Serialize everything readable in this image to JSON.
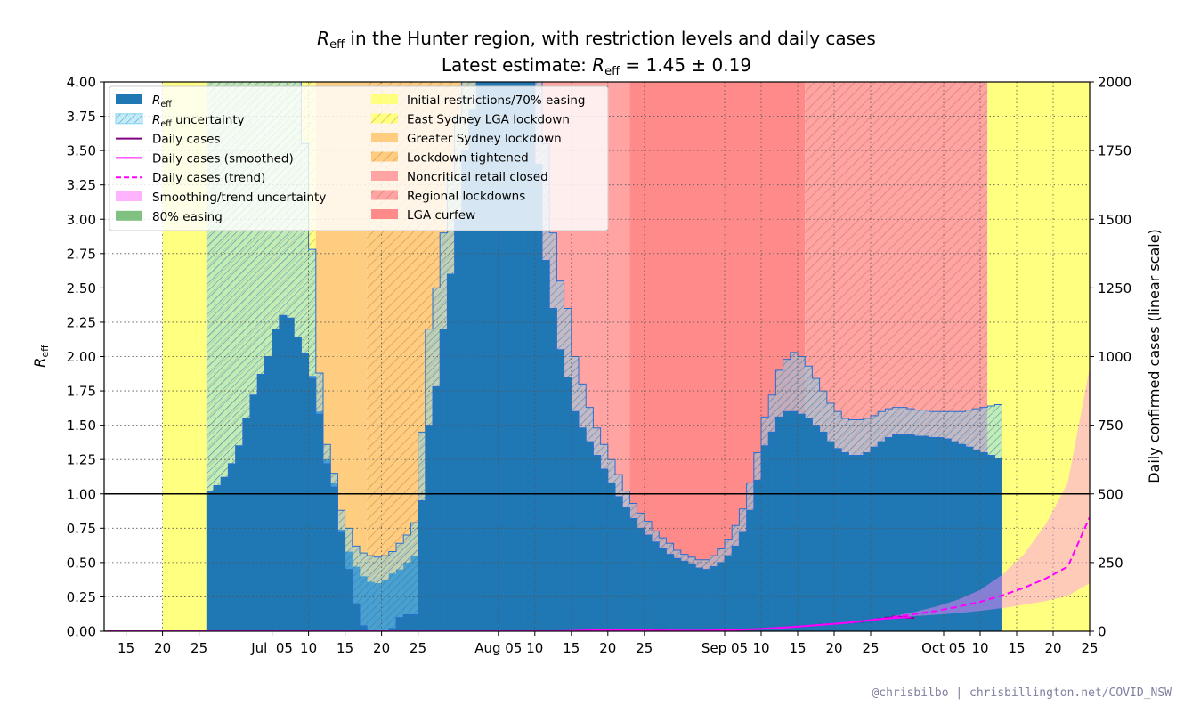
{
  "chart_data": {
    "type": "step-area",
    "title_symbol": "R",
    "title_subscript": "eff",
    "title_rest": " in the Hunter region, with restriction levels and daily cases",
    "subtitle_prefix": "Latest estimate: ",
    "subtitle_symbol": "R",
    "subtitle_subscript": "eff",
    "subtitle_value": " = 1.45 ± 0.19",
    "ylabel_left_symbol": "R",
    "ylabel_left_subscript": "eff",
    "ylabel_right": "Daily confirmed cases (linear scale)",
    "x_range": [
      "2021-06-12",
      "2021-10-25"
    ],
    "ylim_left": [
      0,
      4
    ],
    "ylim_right": [
      0,
      2000
    ],
    "left_ticks": [
      "0.00",
      "0.25",
      "0.50",
      "0.75",
      "1.00",
      "1.25",
      "1.50",
      "1.75",
      "2.00",
      "2.25",
      "2.50",
      "2.75",
      "3.00",
      "3.25",
      "3.50",
      "3.75",
      "4.00"
    ],
    "right_ticks": [
      "0",
      "250",
      "500",
      "750",
      "1000",
      "1250",
      "1500",
      "1750",
      "2000"
    ],
    "x_ticks": [
      {
        "date": "2021-06-15",
        "label": "15"
      },
      {
        "date": "2021-06-20",
        "label": "20"
      },
      {
        "date": "2021-06-25",
        "label": "25"
      },
      {
        "date": "2021-07-05",
        "label": "Jul  05"
      },
      {
        "date": "2021-07-10",
        "label": "10"
      },
      {
        "date": "2021-07-15",
        "label": "15"
      },
      {
        "date": "2021-07-20",
        "label": "20"
      },
      {
        "date": "2021-07-25",
        "label": "25"
      },
      {
        "date": "2021-08-05",
        "label": "Aug 05"
      },
      {
        "date": "2021-08-10",
        "label": "10"
      },
      {
        "date": "2021-08-15",
        "label": "15"
      },
      {
        "date": "2021-08-20",
        "label": "20"
      },
      {
        "date": "2021-08-25",
        "label": "25"
      },
      {
        "date": "2021-09-05",
        "label": "Sep 05"
      },
      {
        "date": "2021-09-10",
        "label": "10"
      },
      {
        "date": "2021-09-15",
        "label": "15"
      },
      {
        "date": "2021-09-20",
        "label": "20"
      },
      {
        "date": "2021-09-25",
        "label": "25"
      },
      {
        "date": "2021-10-05",
        "label": "Oct 05"
      },
      {
        "date": "2021-10-10",
        "label": "10"
      },
      {
        "date": "2021-10-15",
        "label": "15"
      },
      {
        "date": "2021-10-20",
        "label": "20"
      },
      {
        "date": "2021-10-25",
        "label": "25"
      }
    ],
    "restriction_spans": [
      {
        "start": "2021-06-20",
        "end": "2021-06-26",
        "name": "Initial restrictions/70% easing",
        "color": "#ffff80",
        "hatch": false
      },
      {
        "start": "2021-06-26",
        "end": "2021-07-11",
        "name": "East Sydney LGA lockdown",
        "color": "#ffff80",
        "hatch": true
      },
      {
        "start": "2021-07-11",
        "end": "2021-07-18",
        "name": "Greater Sydney lockdown",
        "color": "#ffcd80",
        "hatch": false
      },
      {
        "start": "2021-07-18",
        "end": "2021-08-05",
        "name": "Lockdown tightened",
        "color": "#ffcd80",
        "hatch": true
      },
      {
        "start": "2021-08-05",
        "end": "2021-08-23",
        "name": "Noncritical retail closed",
        "color": "#ffa3a3",
        "hatch": false
      },
      {
        "start": "2021-08-23",
        "end": "2021-09-16",
        "name": "LGA curfew",
        "color": "#ff8a8a",
        "hatch": false
      },
      {
        "start": "2021-09-16",
        "end": "2021-10-11",
        "name": "Regional lockdowns",
        "color": "#ffa3a3",
        "hatch": true
      },
      {
        "start": "2021-10-11",
        "end": "2021-10-25",
        "name": "Initial restrictions/70% easing",
        "color": "#ffff80",
        "hatch": false
      }
    ],
    "legend_left": [
      {
        "label_symbol": "R",
        "label_sub": "eff",
        "label_rest": "",
        "swatch": "fill",
        "color": "#1f77b4"
      },
      {
        "label_symbol": "R",
        "label_sub": "eff",
        "label_rest": " uncertainty",
        "swatch": "hatch",
        "color": "#7fd4f0"
      },
      {
        "label_symbol": "",
        "label_sub": "",
        "label_rest": "Daily cases",
        "swatch": "line",
        "color": "#800080"
      },
      {
        "label_symbol": "",
        "label_sub": "",
        "label_rest": "Daily cases (smoothed)",
        "swatch": "line",
        "color": "#ff00ff"
      },
      {
        "label_symbol": "",
        "label_sub": "",
        "label_rest": "Daily cases (trend)",
        "swatch": "dash",
        "color": "#ff00ff"
      },
      {
        "label_symbol": "",
        "label_sub": "",
        "label_rest": "Smoothing/trend uncertainty",
        "swatch": "fill",
        "color": "#ffb3ff"
      },
      {
        "label_symbol": "",
        "label_sub": "",
        "label_rest": "80% easing",
        "swatch": "fill",
        "color": "#80c080"
      }
    ],
    "legend_right": [
      {
        "label": "Initial restrictions/70% easing",
        "swatch": "fill",
        "color": "#ffff80"
      },
      {
        "label": "East Sydney LGA lockdown",
        "swatch": "hatch",
        "color": "#ffff80"
      },
      {
        "label": "Greater Sydney lockdown",
        "swatch": "fill",
        "color": "#ffcd80"
      },
      {
        "label": "Lockdown tightened",
        "swatch": "hatch",
        "color": "#ffcd80"
      },
      {
        "label": "Noncritical retail closed",
        "swatch": "fill",
        "color": "#ffa3a3"
      },
      {
        "label": "Regional lockdowns",
        "swatch": "hatch",
        "color": "#ffa3a3"
      },
      {
        "label": "LGA curfew",
        "swatch": "fill",
        "color": "#ff8a8a"
      }
    ],
    "reff_start_date": "2021-06-26",
    "reff": [
      {
        "r": 1.02,
        "lo": 1.02,
        "hi": 4.0
      },
      {
        "r": 1.06,
        "lo": 1.06,
        "hi": 4.0
      },
      {
        "r": 1.12,
        "lo": 1.12,
        "hi": 4.0
      },
      {
        "r": 1.22,
        "lo": 1.22,
        "hi": 4.0
      },
      {
        "r": 1.35,
        "lo": 1.35,
        "hi": 4.0
      },
      {
        "r": 1.55,
        "lo": 1.55,
        "hi": 4.0
      },
      {
        "r": 1.72,
        "lo": 1.72,
        "hi": 4.0
      },
      {
        "r": 1.87,
        "lo": 1.87,
        "hi": 4.0
      },
      {
        "r": 2.0,
        "lo": 2.0,
        "hi": 4.0
      },
      {
        "r": 2.2,
        "lo": 2.2,
        "hi": 4.0
      },
      {
        "r": 2.3,
        "lo": 2.3,
        "hi": 4.0
      },
      {
        "r": 2.28,
        "lo": 2.28,
        "hi": 4.0
      },
      {
        "r": 2.14,
        "lo": 2.14,
        "hi": 4.0
      },
      {
        "r": 2.02,
        "lo": 2.02,
        "hi": 3.55
      },
      {
        "r": 1.86,
        "lo": 1.84,
        "hi": 2.78
      },
      {
        "r": 1.6,
        "lo": 1.58,
        "hi": 1.88
      },
      {
        "r": 1.25,
        "lo": 1.22,
        "hi": 1.36
      },
      {
        "r": 1.08,
        "lo": 1.05,
        "hi": 1.15
      },
      {
        "r": 0.74,
        "lo": 0.72,
        "hi": 0.88
      },
      {
        "r": 0.58,
        "lo": 0.45,
        "hi": 0.75
      },
      {
        "r": 0.47,
        "lo": 0.2,
        "hi": 0.62
      },
      {
        "r": 0.4,
        "lo": 0.04,
        "hi": 0.57
      },
      {
        "r": 0.36,
        "lo": 0.0,
        "hi": 0.55
      },
      {
        "r": 0.35,
        "lo": 0.0,
        "hi": 0.54
      },
      {
        "r": 0.37,
        "lo": 0.0,
        "hi": 0.55
      },
      {
        "r": 0.42,
        "lo": 0.02,
        "hi": 0.58
      },
      {
        "r": 0.45,
        "lo": 0.1,
        "hi": 0.64
      },
      {
        "r": 0.5,
        "lo": 0.12,
        "hi": 0.7
      },
      {
        "r": 0.55,
        "lo": 0.12,
        "hi": 0.79
      },
      {
        "r": 0.95,
        "lo": 0.95,
        "hi": 1.45
      },
      {
        "r": 1.5,
        "lo": 1.5,
        "hi": 2.2
      },
      {
        "r": 1.78,
        "lo": 1.78,
        "hi": 2.5
      },
      {
        "r": 2.2,
        "lo": 2.2,
        "hi": 2.9
      },
      {
        "r": 2.6,
        "lo": 2.6,
        "hi": 3.3
      },
      {
        "r": 3.0,
        "lo": 3.0,
        "hi": 3.75
      },
      {
        "r": 3.5,
        "lo": 3.5,
        "hi": 4.0
      },
      {
        "r": 3.8,
        "lo": 3.8,
        "hi": 4.0
      },
      {
        "r": 4.0,
        "lo": 4.0,
        "hi": 4.0
      },
      {
        "r": 4.0,
        "lo": 4.0,
        "hi": 4.0
      },
      {
        "r": 4.0,
        "lo": 4.0,
        "hi": 4.0
      },
      {
        "r": 4.0,
        "lo": 4.0,
        "hi": 4.0
      },
      {
        "r": 4.0,
        "lo": 4.0,
        "hi": 4.0
      },
      {
        "r": 4.0,
        "lo": 4.0,
        "hi": 4.0
      },
      {
        "r": 4.0,
        "lo": 4.0,
        "hi": 4.0
      },
      {
        "r": 4.0,
        "lo": 4.0,
        "hi": 4.0
      },
      {
        "r": 3.4,
        "lo": 3.4,
        "hi": 4.0
      },
      {
        "r": 2.7,
        "lo": 2.7,
        "hi": 3.55
      },
      {
        "r": 2.35,
        "lo": 2.35,
        "hi": 2.9
      },
      {
        "r": 2.05,
        "lo": 2.05,
        "hi": 2.55
      },
      {
        "r": 1.85,
        "lo": 1.85,
        "hi": 2.35
      },
      {
        "r": 1.6,
        "lo": 1.6,
        "hi": 2.0
      },
      {
        "r": 1.48,
        "lo": 1.48,
        "hi": 1.8
      },
      {
        "r": 1.38,
        "lo": 1.38,
        "hi": 1.63
      },
      {
        "r": 1.28,
        "lo": 1.28,
        "hi": 1.48
      },
      {
        "r": 1.18,
        "lo": 1.18,
        "hi": 1.36
      },
      {
        "r": 1.08,
        "lo": 1.08,
        "hi": 1.25
      },
      {
        "r": 0.98,
        "lo": 0.98,
        "hi": 1.14
      },
      {
        "r": 0.9,
        "lo": 0.9,
        "hi": 1.02
      },
      {
        "r": 0.82,
        "lo": 0.82,
        "hi": 0.93
      },
      {
        "r": 0.75,
        "lo": 0.75,
        "hi": 0.86
      },
      {
        "r": 0.7,
        "lo": 0.7,
        "hi": 0.8
      },
      {
        "r": 0.65,
        "lo": 0.65,
        "hi": 0.73
      },
      {
        "r": 0.6,
        "lo": 0.6,
        "hi": 0.68
      },
      {
        "r": 0.56,
        "lo": 0.56,
        "hi": 0.64
      },
      {
        "r": 0.53,
        "lo": 0.53,
        "hi": 0.59
      },
      {
        "r": 0.51,
        "lo": 0.51,
        "hi": 0.56
      },
      {
        "r": 0.49,
        "lo": 0.49,
        "hi": 0.54
      },
      {
        "r": 0.46,
        "lo": 0.46,
        "hi": 0.52
      },
      {
        "r": 0.45,
        "lo": 0.45,
        "hi": 0.52
      },
      {
        "r": 0.47,
        "lo": 0.47,
        "hi": 0.55
      },
      {
        "r": 0.5,
        "lo": 0.5,
        "hi": 0.6
      },
      {
        "r": 0.55,
        "lo": 0.55,
        "hi": 0.67
      },
      {
        "r": 0.62,
        "lo": 0.62,
        "hi": 0.77
      },
      {
        "r": 0.72,
        "lo": 0.72,
        "hi": 0.89
      },
      {
        "r": 0.88,
        "lo": 0.88,
        "hi": 1.08
      },
      {
        "r": 1.1,
        "lo": 1.1,
        "hi": 1.3
      },
      {
        "r": 1.35,
        "lo": 1.35,
        "hi": 1.56
      },
      {
        "r": 1.45,
        "lo": 1.45,
        "hi": 1.72
      },
      {
        "r": 1.56,
        "lo": 1.56,
        "hi": 1.9
      },
      {
        "r": 1.6,
        "lo": 1.6,
        "hi": 1.98
      },
      {
        "r": 1.6,
        "lo": 1.6,
        "hi": 2.03
      },
      {
        "r": 1.58,
        "lo": 1.58,
        "hi": 2.0
      },
      {
        "r": 1.55,
        "lo": 1.55,
        "hi": 1.93
      },
      {
        "r": 1.5,
        "lo": 1.5,
        "hi": 1.84
      },
      {
        "r": 1.45,
        "lo": 1.45,
        "hi": 1.75
      },
      {
        "r": 1.38,
        "lo": 1.38,
        "hi": 1.66
      },
      {
        "r": 1.33,
        "lo": 1.33,
        "hi": 1.6
      },
      {
        "r": 1.3,
        "lo": 1.3,
        "hi": 1.55
      },
      {
        "r": 1.28,
        "lo": 1.28,
        "hi": 1.54
      },
      {
        "r": 1.28,
        "lo": 1.28,
        "hi": 1.54
      },
      {
        "r": 1.3,
        "lo": 1.3,
        "hi": 1.55
      },
      {
        "r": 1.34,
        "lo": 1.34,
        "hi": 1.57
      },
      {
        "r": 1.38,
        "lo": 1.38,
        "hi": 1.6
      },
      {
        "r": 1.41,
        "lo": 1.41,
        "hi": 1.62
      },
      {
        "r": 1.43,
        "lo": 1.43,
        "hi": 1.63
      },
      {
        "r": 1.43,
        "lo": 1.43,
        "hi": 1.63
      },
      {
        "r": 1.43,
        "lo": 1.43,
        "hi": 1.62
      },
      {
        "r": 1.42,
        "lo": 1.42,
        "hi": 1.61
      },
      {
        "r": 1.42,
        "lo": 1.42,
        "hi": 1.61
      },
      {
        "r": 1.41,
        "lo": 1.41,
        "hi": 1.6
      },
      {
        "r": 1.41,
        "lo": 1.41,
        "hi": 1.6
      },
      {
        "r": 1.4,
        "lo": 1.4,
        "hi": 1.6
      },
      {
        "r": 1.38,
        "lo": 1.38,
        "hi": 1.6
      },
      {
        "r": 1.36,
        "lo": 1.36,
        "hi": 1.6
      },
      {
        "r": 1.34,
        "lo": 1.34,
        "hi": 1.61
      },
      {
        "r": 1.32,
        "lo": 1.32,
        "hi": 1.62
      },
      {
        "r": 1.3,
        "lo": 1.3,
        "hi": 1.63
      },
      {
        "r": 1.28,
        "lo": 1.28,
        "hi": 1.64
      },
      {
        "r": 1.26,
        "lo": 1.26,
        "hi": 1.65
      }
    ],
    "daily_cases": {
      "start_date": "2021-06-12",
      "values": [
        0,
        0,
        0,
        0,
        0,
        0,
        0,
        0,
        0,
        0,
        0,
        0,
        0,
        0,
        0,
        0,
        0,
        0,
        0,
        0,
        0,
        0,
        0,
        0,
        0,
        0,
        0,
        0,
        0,
        0,
        0,
        0,
        0,
        0,
        0,
        0,
        0,
        0,
        0,
        0,
        0,
        0,
        0,
        0,
        0,
        0,
        0,
        0,
        0,
        0,
        0,
        0,
        0,
        0,
        0,
        0,
        0,
        0,
        0,
        0,
        0,
        0,
        0,
        0,
        0,
        2,
        3,
        5,
        6,
        5,
        4,
        3,
        2,
        2,
        3,
        4,
        3,
        2,
        2,
        2,
        2,
        1,
        2,
        2,
        3,
        4,
        5,
        6,
        7,
        8,
        9,
        10,
        12,
        14,
        16,
        18,
        20,
        22,
        24,
        26,
        28,
        30,
        32,
        34,
        38,
        42,
        46,
        50,
        54,
        52,
        48
      ]
    },
    "trend": [
      {
        "date": "2021-09-28",
        "value": 52,
        "lo": 50,
        "hi": 55
      },
      {
        "date": "2021-10-01",
        "value": 62,
        "lo": 55,
        "hi": 70
      },
      {
        "date": "2021-10-04",
        "value": 74,
        "lo": 60,
        "hi": 90
      },
      {
        "date": "2021-10-07",
        "value": 89,
        "lo": 66,
        "hi": 115
      },
      {
        "date": "2021-10-10",
        "value": 107,
        "lo": 74,
        "hi": 150
      },
      {
        "date": "2021-10-13",
        "value": 130,
        "lo": 84,
        "hi": 205
      },
      {
        "date": "2021-10-16",
        "value": 158,
        "lo": 96,
        "hi": 280
      },
      {
        "date": "2021-10-19",
        "value": 192,
        "lo": 110,
        "hi": 390
      },
      {
        "date": "2021-10-22",
        "value": 235,
        "lo": 128,
        "hi": 540
      },
      {
        "date": "2021-10-25",
        "value": 415,
        "lo": 175,
        "hi": 960
      }
    ],
    "reference_line": 1.0,
    "grid": true,
    "legend_placement": "top-left",
    "credit": "@chrisbilbo | chrisbillington.net/COVID_NSW"
  }
}
